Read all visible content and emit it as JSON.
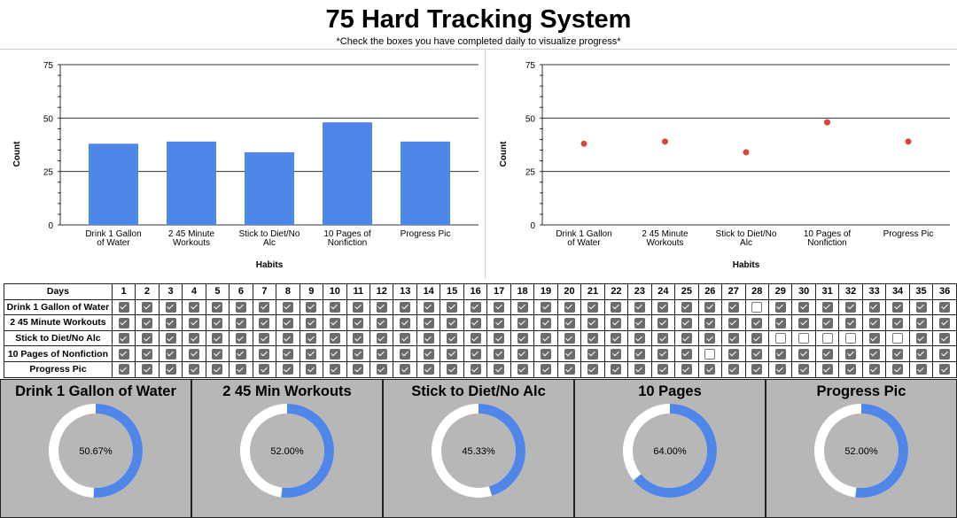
{
  "header": {
    "title": "75 Hard Tracking System",
    "subtitle": "*Check the boxes you have completed daily to visualize progress*"
  },
  "chart_data": [
    {
      "type": "bar",
      "categories": [
        "Drink 1 Gallon of Water",
        "2 45 Minute Workouts",
        "Stick to Diet/No Alc",
        "10 Pages of Nonfiction",
        "Progress Pic"
      ],
      "values": [
        38,
        39,
        34,
        48,
        39
      ],
      "xlabel": "Habits",
      "ylabel": "Count",
      "ylim": [
        0,
        75
      ],
      "yticks": [
        0,
        25,
        50,
        75
      ],
      "color": "#4f86e8"
    },
    {
      "type": "scatter",
      "categories": [
        "Drink 1 Gallon of Water",
        "2 45 Minute Workouts",
        "Stick to Diet/No Alc",
        "10 Pages of Nonfiction",
        "Progress Pic"
      ],
      "values": [
        38,
        39,
        34,
        48,
        39
      ],
      "xlabel": "Habits",
      "ylabel": "Count",
      "ylim": [
        0,
        75
      ],
      "yticks": [
        0,
        25,
        50,
        75
      ],
      "color": "#d9453a"
    }
  ],
  "table": {
    "days_label": "Days",
    "days": [
      1,
      2,
      3,
      4,
      5,
      6,
      7,
      8,
      9,
      10,
      11,
      12,
      13,
      14,
      15,
      16,
      17,
      18,
      19,
      20,
      21,
      22,
      23,
      24,
      25,
      26,
      27,
      28,
      29,
      30,
      31,
      32,
      33,
      34,
      35,
      36
    ],
    "rows": [
      {
        "label": "Drink 1 Gallon of Water",
        "checks": [
          1,
          1,
          1,
          1,
          1,
          1,
          1,
          1,
          1,
          1,
          1,
          1,
          1,
          1,
          1,
          1,
          1,
          1,
          1,
          1,
          1,
          1,
          1,
          1,
          1,
          1,
          1,
          0,
          1,
          1,
          1,
          1,
          1,
          1,
          1,
          1
        ]
      },
      {
        "label": "2 45 Minute Workouts",
        "checks": [
          1,
          1,
          1,
          1,
          1,
          1,
          1,
          1,
          1,
          1,
          1,
          1,
          1,
          1,
          1,
          1,
          1,
          1,
          1,
          1,
          1,
          1,
          1,
          1,
          1,
          1,
          1,
          1,
          1,
          1,
          1,
          1,
          1,
          1,
          1,
          1
        ]
      },
      {
        "label": "Stick to Diet/No Alc",
        "checks": [
          1,
          1,
          1,
          1,
          1,
          1,
          1,
          1,
          1,
          1,
          1,
          1,
          1,
          1,
          1,
          1,
          1,
          1,
          1,
          1,
          1,
          1,
          1,
          1,
          1,
          1,
          1,
          1,
          0,
          0,
          0,
          0,
          1,
          0,
          1,
          1
        ]
      },
      {
        "label": "10 Pages of Nonfiction",
        "checks": [
          1,
          1,
          1,
          1,
          1,
          1,
          1,
          1,
          1,
          1,
          1,
          1,
          1,
          1,
          1,
          1,
          1,
          1,
          1,
          1,
          1,
          1,
          1,
          1,
          1,
          0,
          1,
          1,
          1,
          1,
          1,
          1,
          1,
          1,
          1,
          1
        ]
      },
      {
        "label": "Progress Pic",
        "checks": [
          1,
          1,
          1,
          1,
          1,
          1,
          1,
          1,
          1,
          1,
          1,
          1,
          1,
          1,
          1,
          1,
          1,
          1,
          1,
          1,
          1,
          1,
          1,
          1,
          1,
          1,
          1,
          1,
          1,
          1,
          1,
          1,
          1,
          1,
          1,
          1
        ]
      }
    ]
  },
  "progress": [
    {
      "title": "Drink 1 Gallon of Water",
      "label": "50.67%",
      "value": 50.67
    },
    {
      "title": "2 45 Min Workouts",
      "label": "52.00%",
      "value": 52.0
    },
    {
      "title": "Stick to Diet/No Alc",
      "label": "45.33%",
      "value": 45.33
    },
    {
      "title": "10 Pages",
      "label": "64.00%",
      "value": 64.0
    },
    {
      "title": "Progress Pic",
      "label": "52.00%",
      "value": 52.0
    }
  ],
  "colors": {
    "accent": "#4f86e8",
    "ring": "#ffffff",
    "panel": "#b7b7b7"
  }
}
